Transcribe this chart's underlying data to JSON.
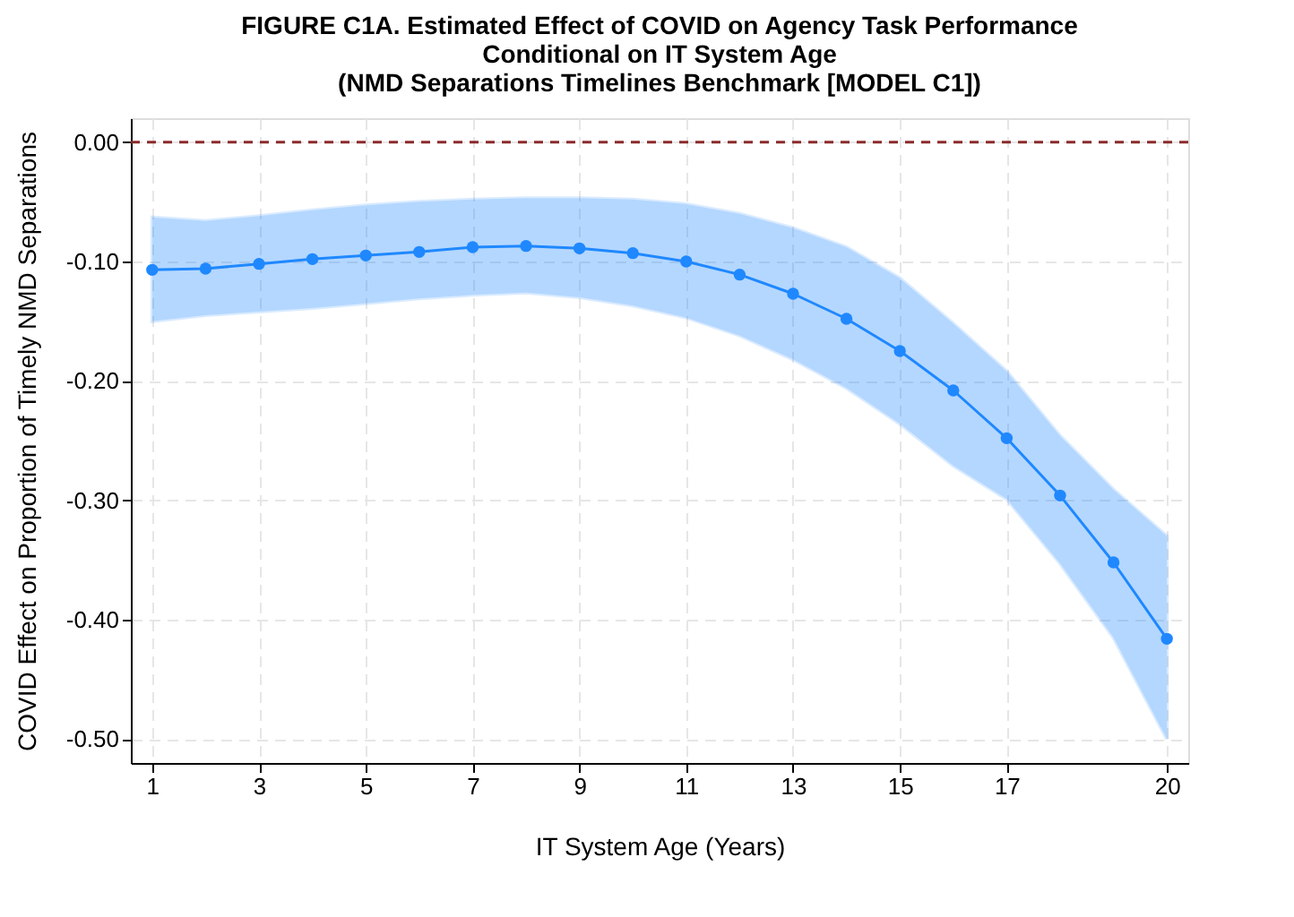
{
  "chart_data": {
    "type": "line",
    "title": "FIGURE C1A. Estimated Effect of COVID on Agency Task Performance\nConditional on IT System Age\n(NMD Separations Timelines Benchmark [MODEL C1])",
    "xlabel": "IT System Age (Years)",
    "ylabel": "COVID Effect on Proportion of Timely NMD Separations",
    "x": [
      1,
      2,
      3,
      4,
      5,
      6,
      7,
      8,
      9,
      10,
      11,
      12,
      13,
      14,
      15,
      16,
      17,
      18,
      19,
      20
    ],
    "series": [
      {
        "color": "#1f88ff",
        "marker": "circle",
        "line_style": "solid",
        "values": [
          -0.107,
          -0.106,
          -0.102,
          -0.098,
          -0.095,
          -0.092,
          -0.088,
          -0.087,
          -0.089,
          -0.093,
          -0.1,
          -0.111,
          -0.127,
          -0.148,
          -0.175,
          -0.208,
          -0.248,
          -0.296,
          -0.352,
          -0.416
        ],
        "upper": [
          -0.063,
          -0.066,
          -0.062,
          -0.057,
          -0.053,
          -0.05,
          -0.048,
          -0.047,
          -0.047,
          -0.048,
          -0.052,
          -0.06,
          -0.072,
          -0.088,
          -0.114,
          -0.152,
          -0.192,
          -0.246,
          -0.291,
          -0.33
        ],
        "lower": [
          -0.15,
          -0.145,
          -0.142,
          -0.139,
          -0.135,
          -0.131,
          -0.128,
          -0.126,
          -0.13,
          -0.137,
          -0.147,
          -0.162,
          -0.182,
          -0.206,
          -0.236,
          -0.271,
          -0.299,
          -0.353,
          -0.415,
          -0.5
        ]
      }
    ],
    "xlim": [
      0.6,
      20.4
    ],
    "xticks": [
      1,
      3,
      5,
      7,
      9,
      11,
      13,
      15,
      17,
      20
    ],
    "ylim": [
      -0.52,
      0.02
    ],
    "yticks": [
      {
        "value": -0.5,
        "label": "-0.50"
      },
      {
        "value": -0.4,
        "label": "-0.40"
      },
      {
        "value": -0.3,
        "label": "-0.30"
      },
      {
        "value": -0.2,
        "label": "-0.20"
      },
      {
        "value": -0.1,
        "label": "-0.10"
      },
      {
        "value": 0,
        "label": "0.00"
      }
    ],
    "ref_lines": [
      {
        "axis": "y",
        "value": 0,
        "color": "#8b2a2a",
        "line_style": "dashed"
      }
    ],
    "grid": true
  }
}
